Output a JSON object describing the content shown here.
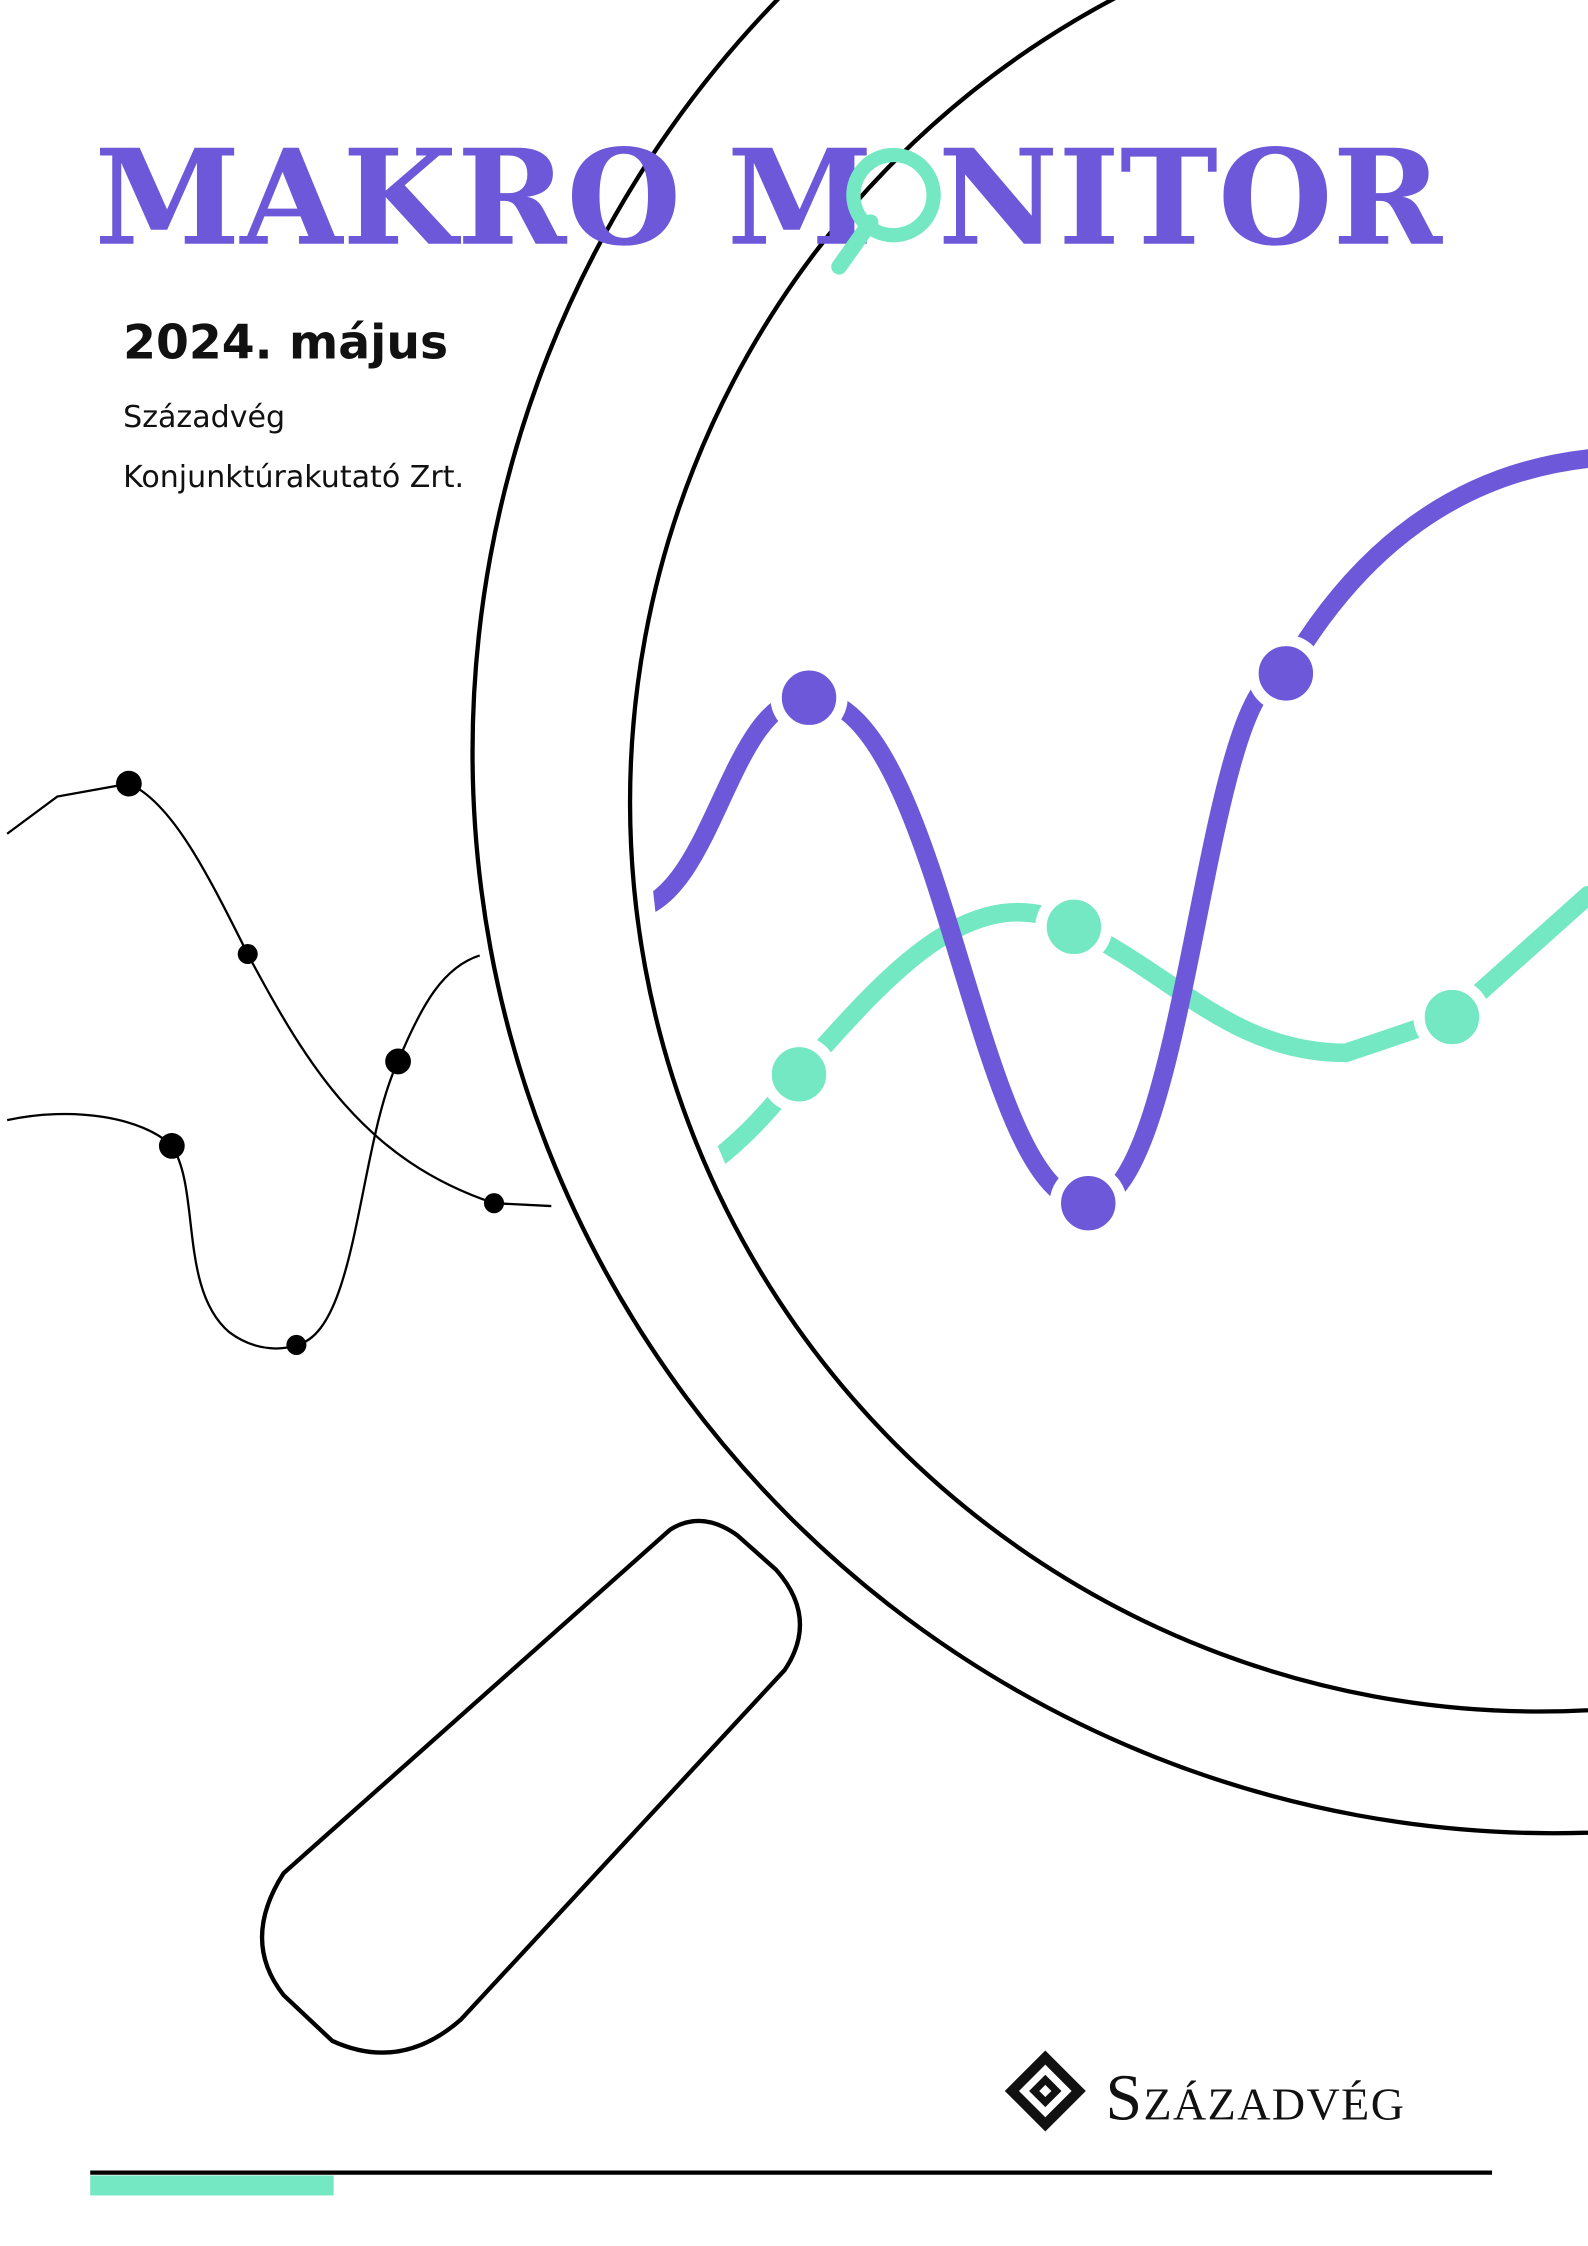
{
  "header": {
    "title_start": "MAKRO M",
    "title_end": "NITOR",
    "date": "2024. május",
    "publisher": [
      "Századvég",
      "Konjunktúrakutató Zrt."
    ]
  },
  "footer": {
    "logo": "Századvég"
  }
}
